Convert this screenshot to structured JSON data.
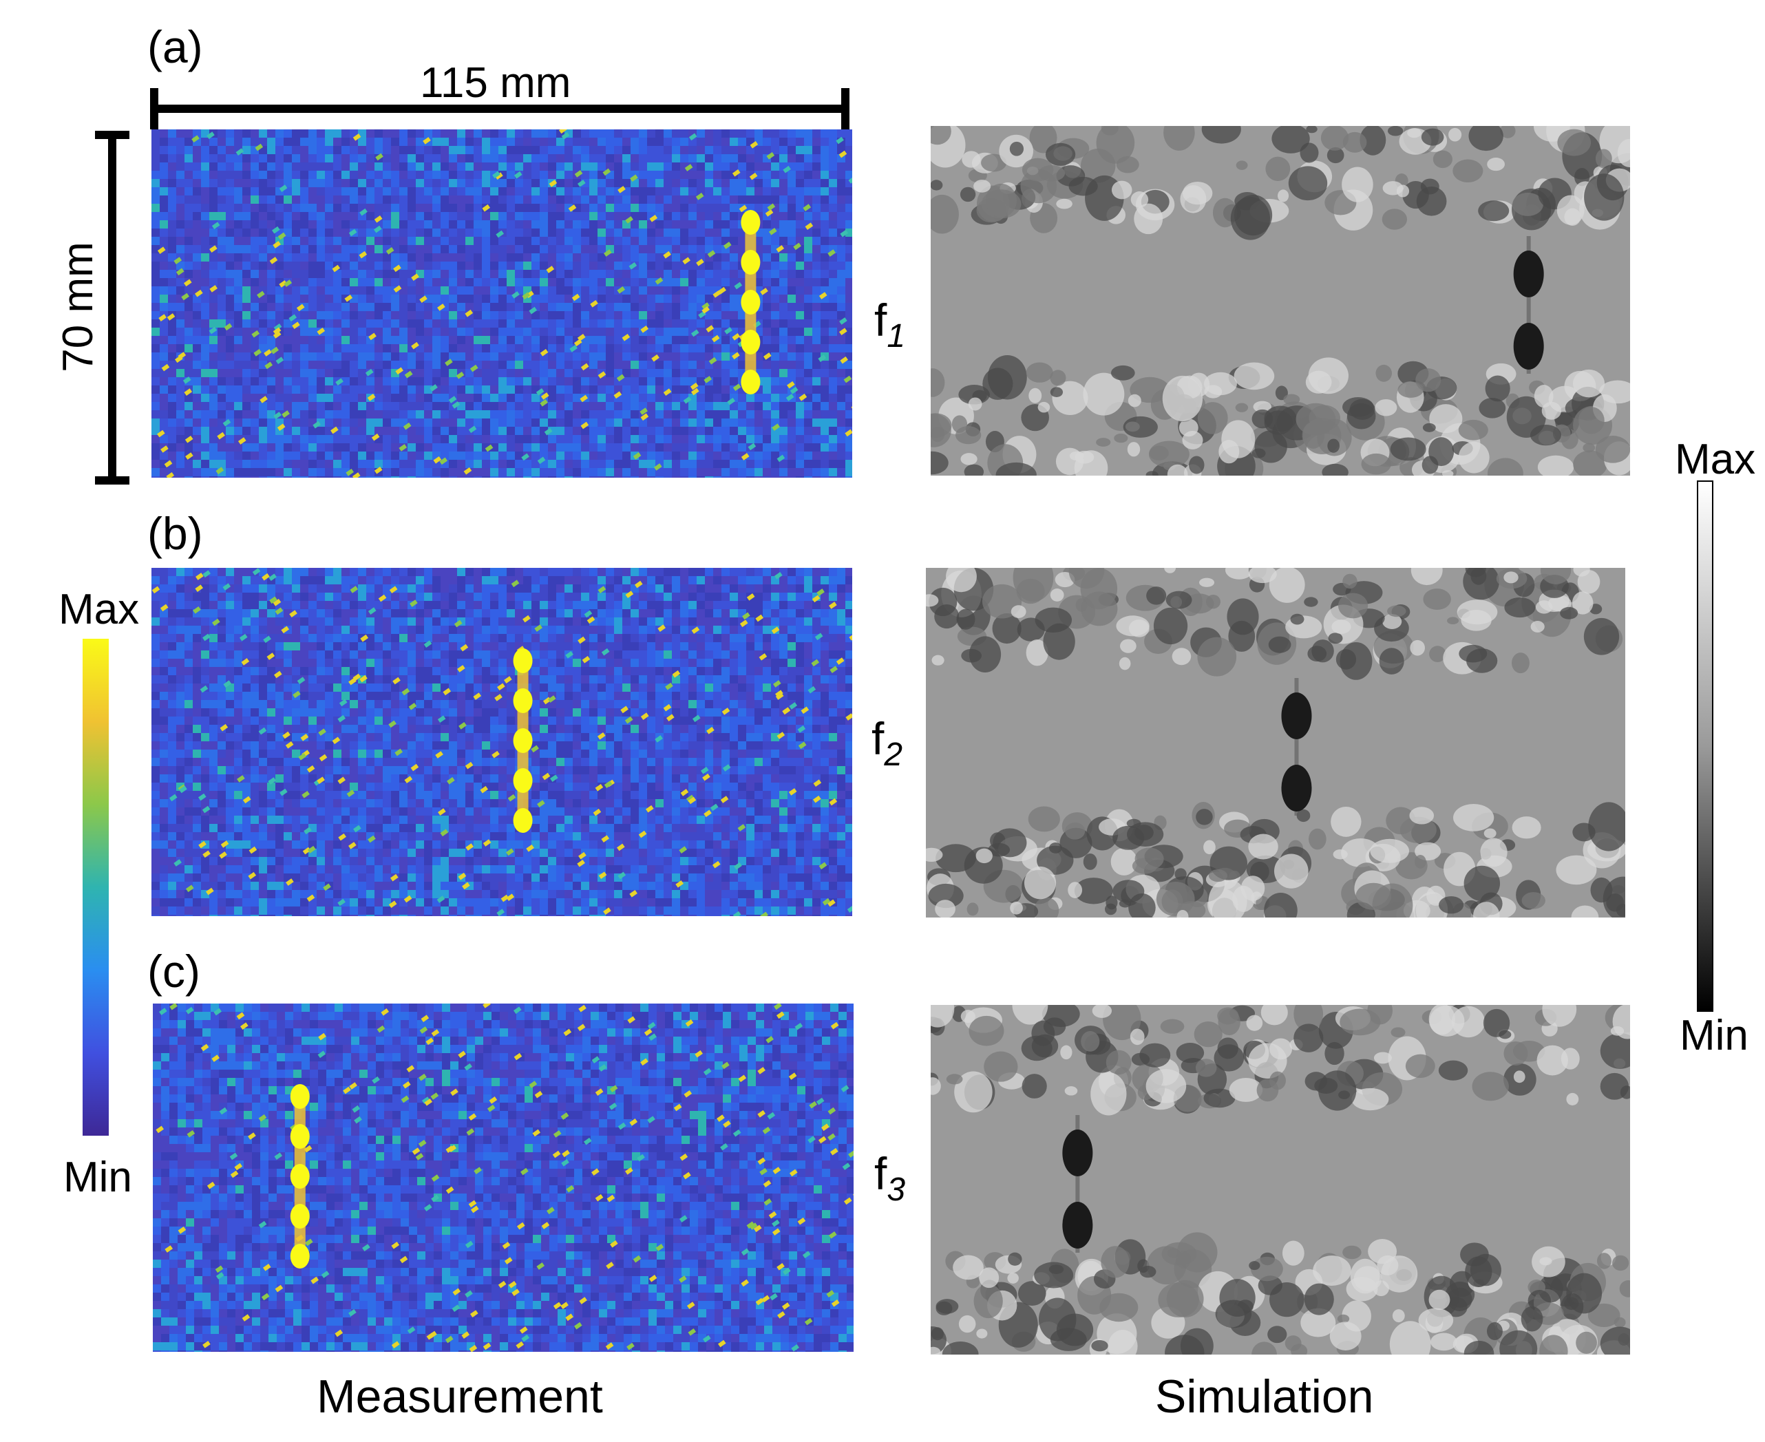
{
  "figure": {
    "scale": {
      "horizontal": "115 mm",
      "vertical": "70 mm"
    },
    "panels": [
      {
        "letter": "(a)",
        "freq": "f",
        "freq_sub": "1",
        "defect_fraction": 0.855
      },
      {
        "letter": "(b)",
        "freq": "f",
        "freq_sub": "2",
        "defect_fraction": 0.53
      },
      {
        "letter": "(c)",
        "freq": "f",
        "freq_sub": "3",
        "defect_fraction": 0.21
      }
    ],
    "columns": {
      "left": "Measurement",
      "right": "Simulation"
    },
    "colorbar_left": {
      "max": "Max",
      "min": "Min",
      "colors": [
        "#fafa17",
        "#f0c232",
        "#8cc84a",
        "#2fb4b0",
        "#2a8ef0",
        "#4050e0",
        "#3e2896"
      ]
    },
    "colorbar_right": {
      "max": "Max",
      "min": "Min",
      "colors": [
        "#ffffff",
        "#9a9a9a",
        "#000000"
      ]
    }
  }
}
